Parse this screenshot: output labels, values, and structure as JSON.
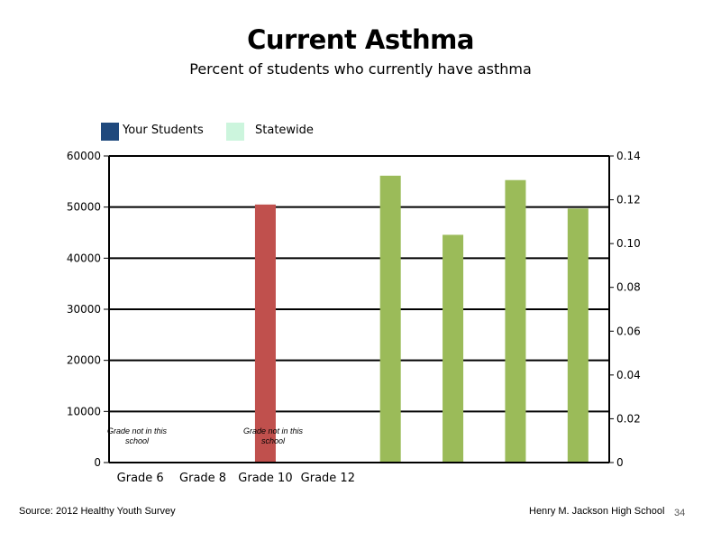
{
  "slide": {
    "title": "Current Asthma",
    "subtitle": "Percent of students who currently have asthma",
    "source": "Source: 2012 Healthy Youth Survey",
    "school": "Henry M.  Jackson High School",
    "page_number": "34"
  },
  "legend": [
    {
      "label": "Your Students",
      "color": "#1f497d"
    },
    {
      "label": "Statewide",
      "color": "#ccf5dd"
    }
  ],
  "notes": [
    {
      "text": "Grade not in this school",
      "category": "Grade 6"
    },
    {
      "text": "Grade not in this school",
      "category": "Grade 10"
    }
  ],
  "chart_data": {
    "type": "bar",
    "categories": [
      "Grade 6",
      "Grade 8",
      "Grade 10",
      "Grade 12"
    ],
    "y_left": {
      "min": 0,
      "max": 60000,
      "ticks": [
        "0",
        "10000",
        "20000",
        "30000",
        "40000",
        "50000",
        "60000"
      ]
    },
    "y_right": {
      "min": 0,
      "max": 0.14,
      "ticks": [
        "0",
        "0.02",
        "0.04",
        "0.06",
        "0.08",
        "0.10",
        "0.12",
        "0.14"
      ]
    },
    "grid": true,
    "legend_position": "top-left",
    "bars": [
      {
        "axis": "left",
        "slot": 3,
        "value": 50500,
        "color": "#c0504d"
      },
      {
        "axis": "right",
        "slot": 5,
        "value": 0.131,
        "color": "#9bbb59"
      },
      {
        "axis": "right",
        "slot": 6,
        "value": 0.104,
        "color": "#9bbb59"
      },
      {
        "axis": "right",
        "slot": 7,
        "value": 0.129,
        "color": "#9bbb59"
      },
      {
        "axis": "right",
        "slot": 8,
        "value": 0.116,
        "color": "#9bbb59"
      }
    ],
    "slot_count": 8
  }
}
